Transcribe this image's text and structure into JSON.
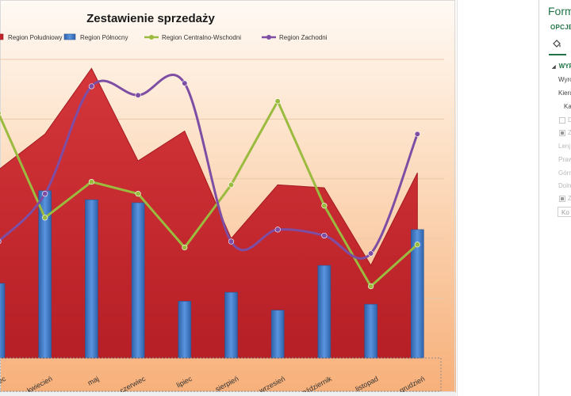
{
  "chart_data": {
    "type": "bar",
    "title": "Zestawienie sprzedaży",
    "categories": [
      "marzec",
      "kwiecień",
      "maj",
      "czerwiec",
      "lipiec",
      "sierpień",
      "wrzesień",
      "październik",
      "listopad",
      "grudzień"
    ],
    "visible_labels": [
      "ec",
      "kwiecień",
      "maj",
      "czerwiec",
      "lipiec",
      "sierpień",
      "wrzesień",
      "październik",
      "listopad",
      "grudzień"
    ],
    "ylim": [
      0,
      100
    ],
    "grid": true,
    "legend": "top",
    "series": [
      {
        "name": "Region Południowy",
        "kind": "area",
        "color": "#c0262a",
        "values": [
          63,
          75,
          97,
          66,
          76,
          40,
          58,
          57,
          31,
          62
        ]
      },
      {
        "name": "Region Północny",
        "kind": "bar",
        "color": "#3f78c5",
        "values": [
          25,
          56,
          53,
          52,
          19,
          22,
          16,
          31,
          18,
          43
        ]
      },
      {
        "name": "Region Centralno-Wschodni",
        "kind": "line",
        "color": "#9bbb3f",
        "values": [
          82,
          47,
          59,
          55,
          37,
          58,
          86,
          51,
          24,
          38
        ]
      },
      {
        "name": "Region Zachodni",
        "kind": "line",
        "color": "#7d4ea4",
        "values": [
          39,
          55,
          91,
          88,
          92,
          39,
          43,
          41,
          35,
          75
        ]
      }
    ],
    "legend_labels": [
      "Region Południowy",
      "Region Północny",
      "Region Centralno-Wschodni",
      "Region Zachodni"
    ]
  },
  "pane": {
    "title": "Form",
    "tab": "OPCJE O",
    "section": "WYR",
    "items": [
      "Wyro",
      "Kieru",
      "Kat",
      "D",
      "Z",
      "Lenj",
      "Praw",
      "Górn",
      "Doln",
      "Z"
    ],
    "input_value": "Ko"
  },
  "colors": {
    "accent": "#217346",
    "plot_bg_top": "#fde5d0",
    "plot_bg_bottom": "#f7b47a"
  }
}
